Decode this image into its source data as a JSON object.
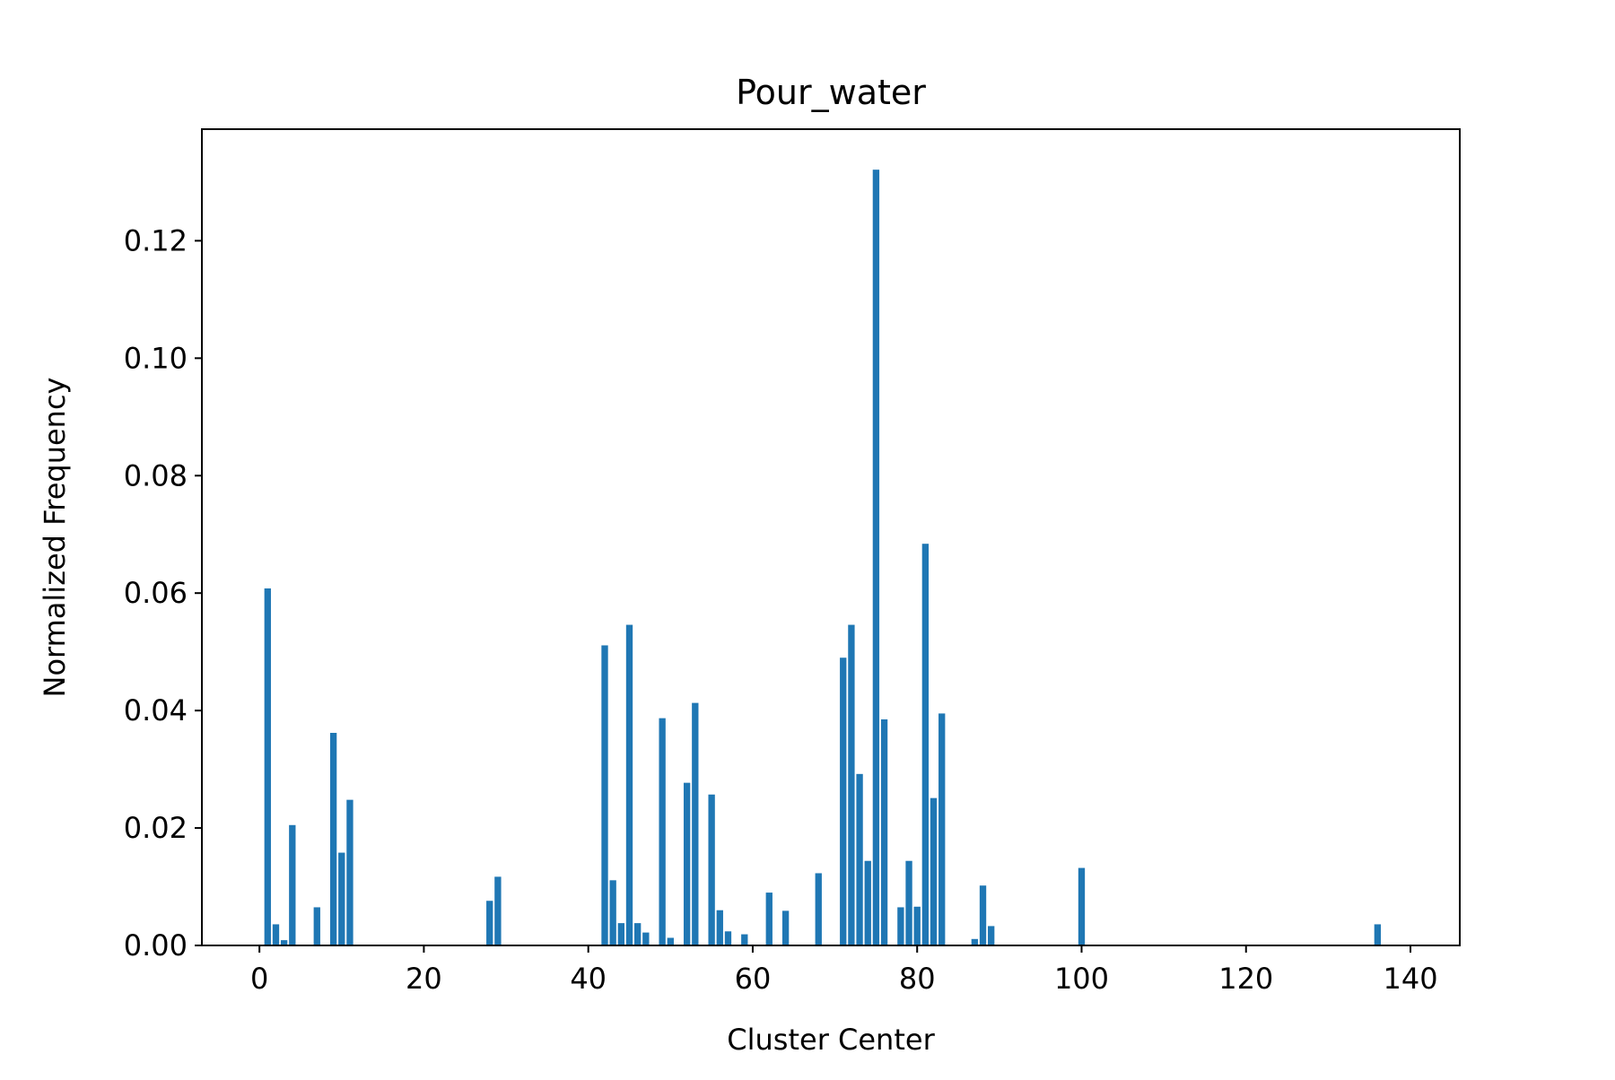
{
  "chart_data": {
    "type": "bar",
    "title": "Pour_water",
    "xlabel": "Cluster Center",
    "ylabel": "Normalized Frequency",
    "xlim": [
      -7,
      146
    ],
    "ylim": [
      0,
      0.139
    ],
    "xticks": [
      0,
      20,
      40,
      60,
      80,
      100,
      120,
      140
    ],
    "yticks": [
      0.0,
      0.02,
      0.04,
      0.06,
      0.08,
      0.1,
      0.12
    ],
    "grid": false,
    "legend": "none",
    "bar_color": "#1f77b4",
    "x": [
      1,
      2,
      3,
      4,
      7,
      9,
      10,
      11,
      28,
      29,
      42,
      43,
      44,
      45,
      46,
      47,
      49,
      50,
      52,
      53,
      55,
      56,
      57,
      59,
      62,
      64,
      68,
      71,
      72,
      73,
      74,
      75,
      76,
      78,
      79,
      80,
      81,
      82,
      83,
      87,
      88,
      89,
      100,
      136
    ],
    "values": [
      0.0608,
      0.0036,
      0.0009,
      0.0205,
      0.0065,
      0.0362,
      0.0158,
      0.0248,
      0.0076,
      0.0117,
      0.0511,
      0.0111,
      0.0038,
      0.0546,
      0.0038,
      0.0022,
      0.0387,
      0.0013,
      0.0277,
      0.0413,
      0.0257,
      0.006,
      0.0024,
      0.0019,
      0.009,
      0.0059,
      0.0123,
      0.049,
      0.0546,
      0.0292,
      0.0144,
      0.1321,
      0.0385,
      0.0065,
      0.0144,
      0.0066,
      0.0684,
      0.0251,
      0.0395,
      0.0011,
      0.0102,
      0.0033,
      0.0132,
      0.0036
    ]
  }
}
